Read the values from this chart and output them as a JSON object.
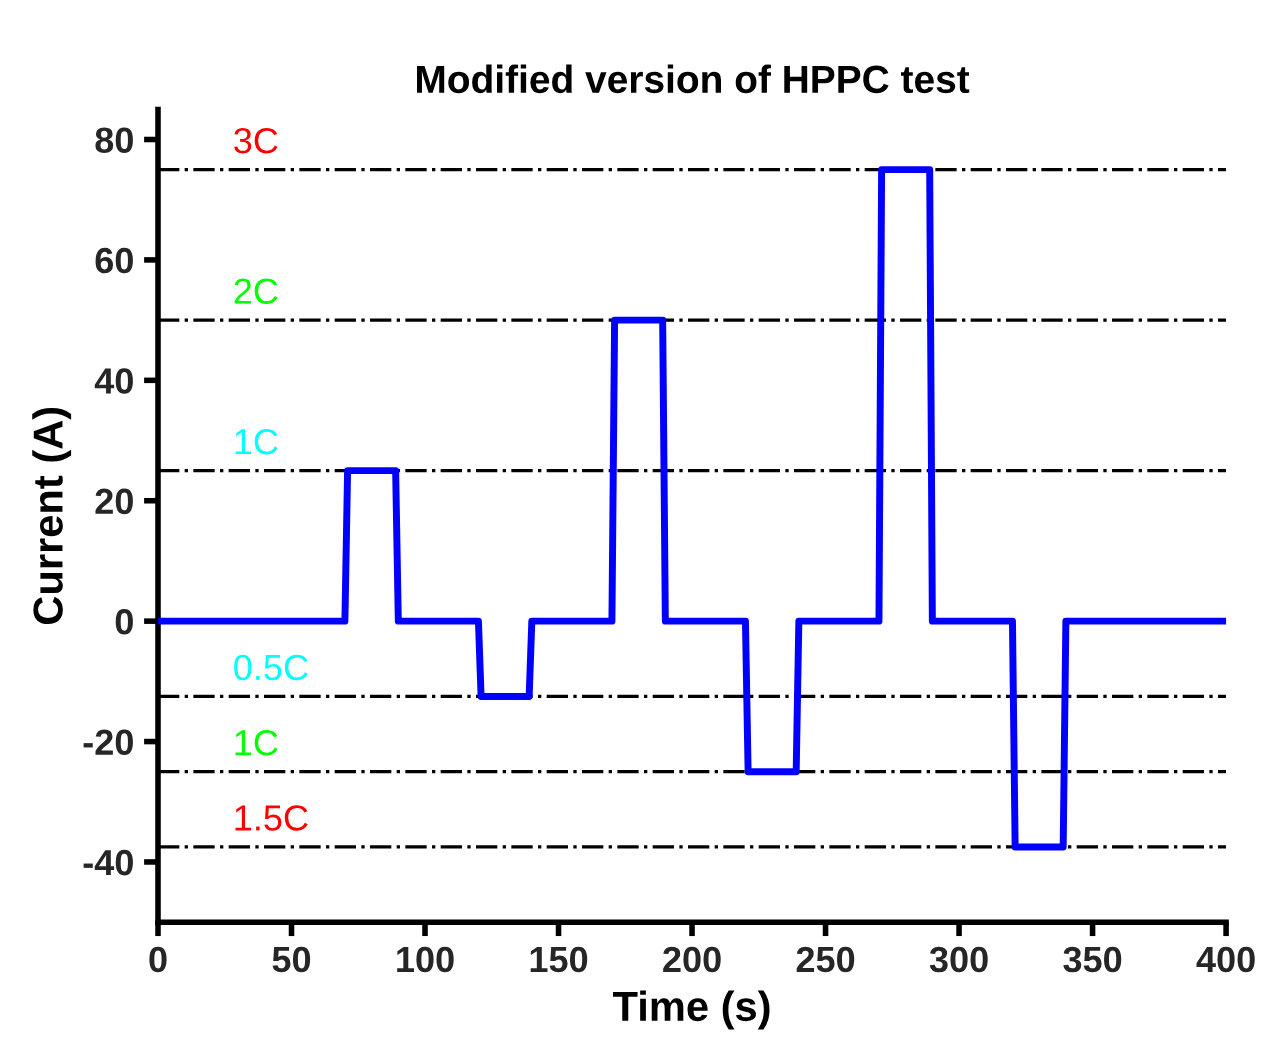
{
  "chart_data": {
    "type": "line",
    "title": "Modified version of HPPC test",
    "xlabel": "Time (s)",
    "ylabel": "Current (A)",
    "xlim": [
      0,
      400
    ],
    "xticks": [
      0,
      50,
      100,
      150,
      200,
      250,
      300,
      350,
      400
    ],
    "ylim": [
      -50,
      85
    ],
    "yticks": [
      -40,
      -20,
      0,
      20,
      40,
      60,
      80
    ],
    "grid": false,
    "marker": "none",
    "line_style": "solid",
    "series": [
      {
        "color": "#0000ff",
        "x": [
          0,
          70,
          71,
          89,
          90,
          120,
          121,
          139,
          140,
          170,
          171,
          189,
          190,
          220,
          221,
          239,
          240,
          270,
          271,
          289,
          290,
          320,
          321,
          339,
          340,
          400
        ],
        "values": [
          0,
          0,
          25,
          25,
          0,
          0,
          -12.5,
          -12.5,
          0,
          0,
          50,
          50,
          0,
          0,
          -25,
          -25,
          0,
          0,
          75,
          75,
          0,
          0,
          -37.5,
          -37.5,
          0,
          0
        ]
      }
    ],
    "ref_lines": [
      {
        "axis": "y",
        "value": 75,
        "label": "3C",
        "color": "#000000"
      },
      {
        "axis": "y",
        "value": 50,
        "label": "2C",
        "color": "#000000"
      },
      {
        "axis": "y",
        "value": 25,
        "label": "1C",
        "color": "#000000"
      },
      {
        "axis": "y",
        "value": -12.5,
        "label": "0.5C",
        "color": "#000000"
      },
      {
        "axis": "y",
        "value": -25,
        "label": "1C",
        "color": "#000000"
      },
      {
        "axis": "y",
        "value": -37.5,
        "label": "1.5C",
        "color": "#000000"
      }
    ]
  }
}
